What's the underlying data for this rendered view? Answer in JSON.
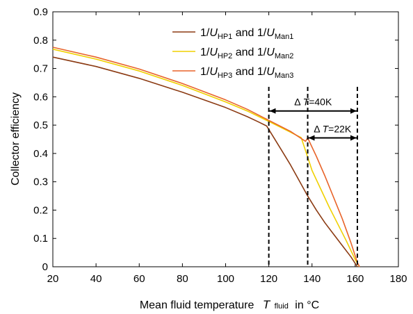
{
  "chart_data": {
    "type": "line",
    "xlabel": "Mean fluid temperature",
    "xlabel_symbol": "T",
    "xlabel_sub": "fluid",
    "xlabel_unit": "in °C",
    "ylabel": "Collector efficiency",
    "xlim": [
      20,
      180
    ],
    "ylim": [
      0,
      0.9
    ],
    "xticks": [
      "20",
      "40",
      "60",
      "80",
      "100",
      "120",
      "140",
      "160",
      "180"
    ],
    "yticks": [
      "0",
      "0.1",
      "0.2",
      "0.3",
      "0.4",
      "0.5",
      "0.6",
      "0.7",
      "0.8",
      "0.9"
    ],
    "grid": false,
    "legend_position": "top-right",
    "series": [
      {
        "legend": {
          "prefix": "1/",
          "sym1": "U",
          "sub1": "HP1",
          "mid": " and 1/",
          "sym2": "U",
          "sub2": "Man1"
        },
        "color": "#8B3A12",
        "x": [
          20,
          40,
          60,
          80,
          100,
          110,
          115,
          119,
          122,
          126,
          130,
          134,
          138,
          142,
          146,
          150,
          154,
          158,
          161
        ],
        "y": [
          0.74,
          0.707,
          0.665,
          0.616,
          0.562,
          0.53,
          0.512,
          0.497,
          0.46,
          0.41,
          0.36,
          0.305,
          0.25,
          0.2,
          0.155,
          0.115,
          0.075,
          0.035,
          0.0
        ]
      },
      {
        "legend": {
          "prefix": "1/",
          "sym1": "U",
          "sub1": "HP2",
          "mid": " and 1/",
          "sym2": "U",
          "sub2": "Man2"
        },
        "color": "#F0D000",
        "x": [
          20,
          40,
          60,
          80,
          100,
          110,
          120,
          130,
          135,
          137,
          140,
          144,
          148,
          152,
          156,
          160,
          162
        ],
        "y": [
          0.768,
          0.733,
          0.691,
          0.64,
          0.582,
          0.55,
          0.513,
          0.475,
          0.456,
          0.41,
          0.34,
          0.275,
          0.21,
          0.15,
          0.09,
          0.025,
          0.0
        ]
      },
      {
        "legend": {
          "prefix": "1/",
          "sym1": "U",
          "sub1": "HP3",
          "mid": " and 1/",
          "sym2": "U",
          "sub2": "Man3"
        },
        "color": "#E8642A",
        "x": [
          20,
          40,
          60,
          80,
          100,
          110,
          120,
          130,
          137,
          138,
          142,
          146,
          150,
          154,
          158,
          161,
          162
        ],
        "y": [
          0.775,
          0.74,
          0.698,
          0.647,
          0.589,
          0.556,
          0.517,
          0.478,
          0.443,
          0.455,
          0.39,
          0.32,
          0.245,
          0.17,
          0.085,
          0.015,
          0.0
        ]
      }
    ],
    "vlines": [
      120,
      138,
      161
    ],
    "annotations": [
      {
        "symbol": "T",
        "value": "=40K",
        "from": 120,
        "to": 161,
        "y": 0.55
      },
      {
        "symbol": "T",
        "value": "=22K",
        "from": 138,
        "to": 161,
        "y": 0.455
      }
    ]
  }
}
